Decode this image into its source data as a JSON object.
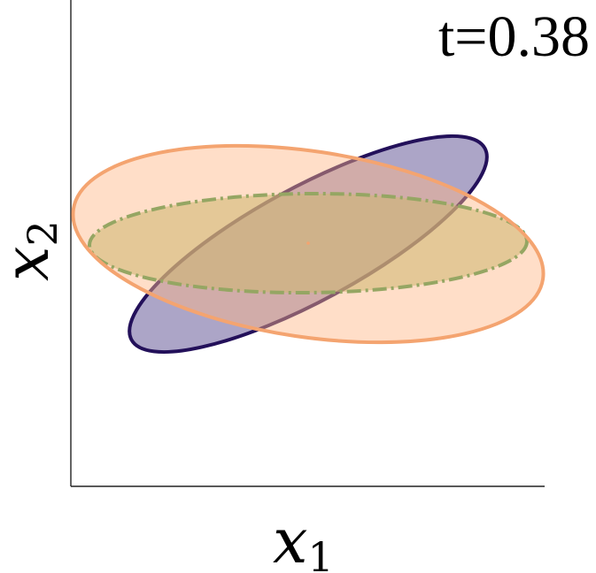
{
  "time_label": "t=0.38",
  "x_axis": {
    "symbol": "x",
    "subscript": "1"
  },
  "y_axis": {
    "symbol": "x",
    "subscript": "2"
  },
  "ellipses": [
    {
      "id": "purple",
      "fill": "#5a4b8f",
      "fill_opacity": 0.5,
      "stroke": "#23105a",
      "dash": "solid",
      "rx": 227,
      "ry": 64,
      "rotation_deg": 28.5,
      "cx": 348,
      "cy": 276
    },
    {
      "id": "green",
      "fill": "#a6b85e",
      "fill_opacity": 0.55,
      "stroke": "#3f9a48",
      "dash": "dashdot",
      "rx": 247,
      "ry": 56,
      "rotation_deg": 0.5,
      "cx": 348,
      "cy": 275
    },
    {
      "id": "orange",
      "fill": "#ffb585",
      "fill_opacity": 0.45,
      "stroke": "#f4a470",
      "dash": "solid",
      "rx": 268,
      "ry": 105,
      "rotation_deg": -8.5,
      "cx": 348,
      "cy": 276
    }
  ],
  "center_point": {
    "color": "#f4a470"
  }
}
